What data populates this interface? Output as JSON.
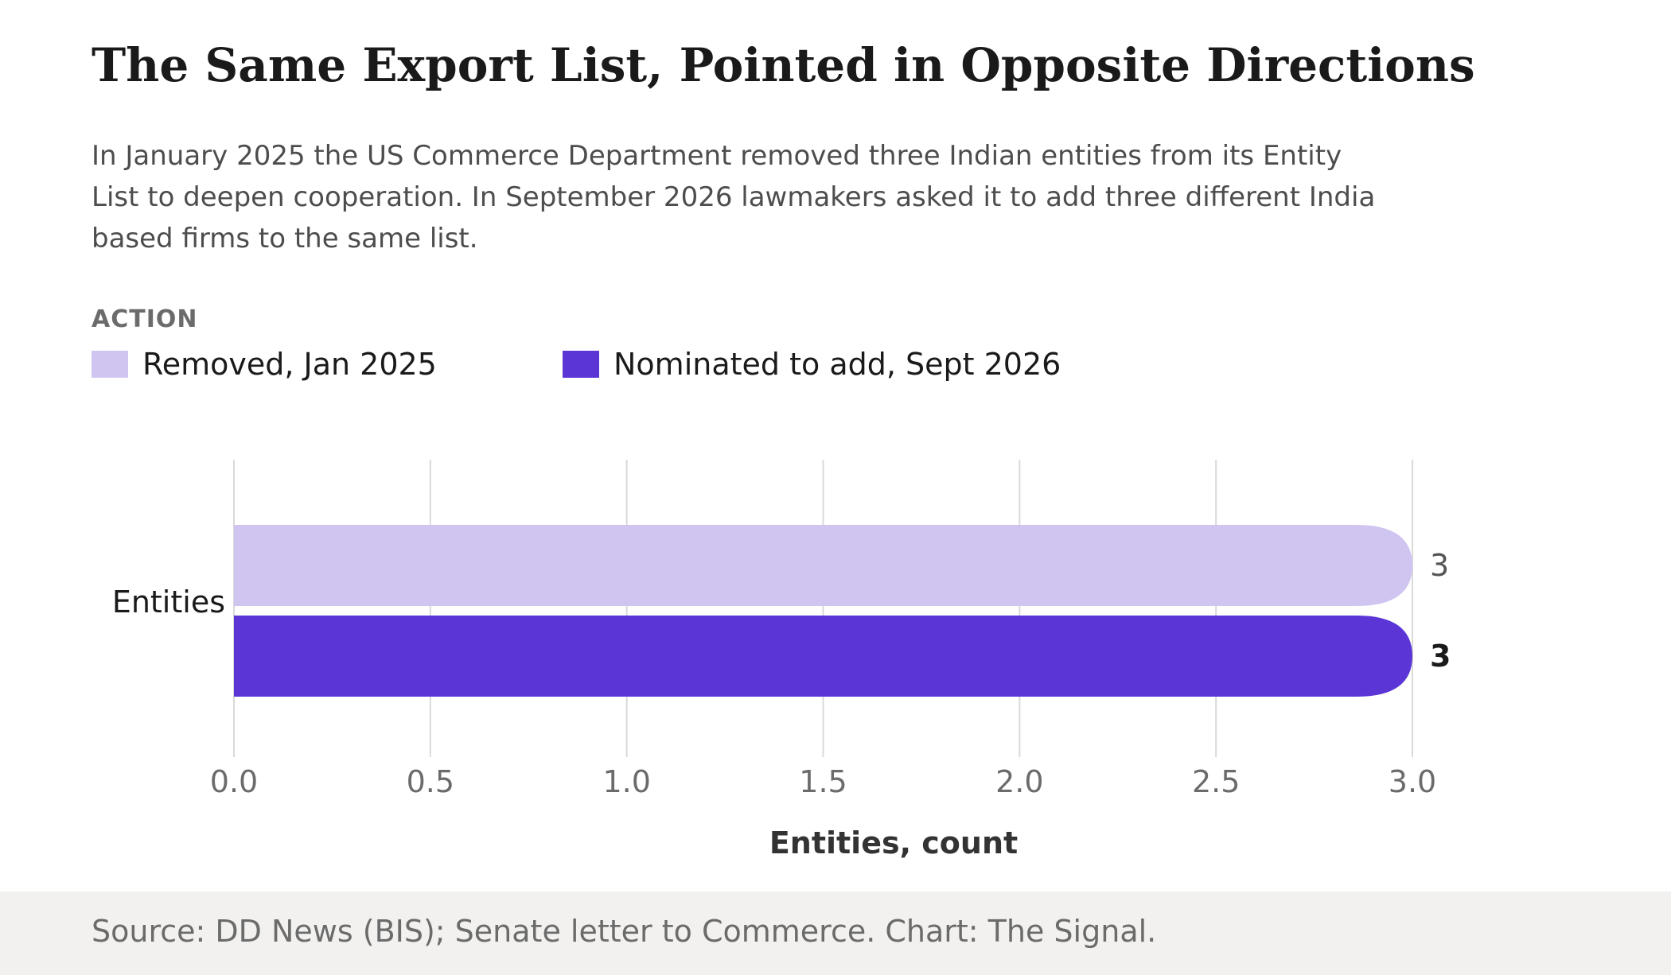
{
  "header": {
    "title": "The Same Export List, Pointed in Opposite Directions",
    "subtitle": "In January 2025 the US Commerce Department removed three Indian entities from its Entity List to deepen cooperation. In September 2026 lawmakers asked it to add three different India based firms to the same list."
  },
  "legend": {
    "title": "ACTION",
    "items": [
      {
        "label": "Removed, Jan 2025",
        "color": "#d0c5f1"
      },
      {
        "label": "Nominated to add, Sept 2026",
        "color": "#5b35d6"
      }
    ]
  },
  "chart_data": {
    "type": "bar",
    "orientation": "horizontal",
    "categories": [
      "Entities"
    ],
    "series": [
      {
        "name": "Removed, Jan 2025",
        "values": [
          3
        ],
        "color": "#d0c5f1",
        "value_labels": [
          "3"
        ]
      },
      {
        "name": "Nominated to add, Sept 2026",
        "values": [
          3
        ],
        "color": "#5b35d6",
        "value_labels": [
          "3"
        ]
      }
    ],
    "xlabel": "Entities, count",
    "ylabel": "",
    "xlim": [
      0,
      3
    ],
    "xticks": [
      0,
      0.5,
      1,
      1.5,
      2,
      2.5,
      3
    ],
    "xtick_labels": [
      "0.0",
      "0.5",
      "1.0",
      "1.5",
      "2.0",
      "2.5",
      "3.0"
    ],
    "grid": true,
    "legend_position": "top-left"
  },
  "footer": {
    "source": "Source: DD News (BIS); Senate letter to Commerce. Chart: The Signal."
  }
}
